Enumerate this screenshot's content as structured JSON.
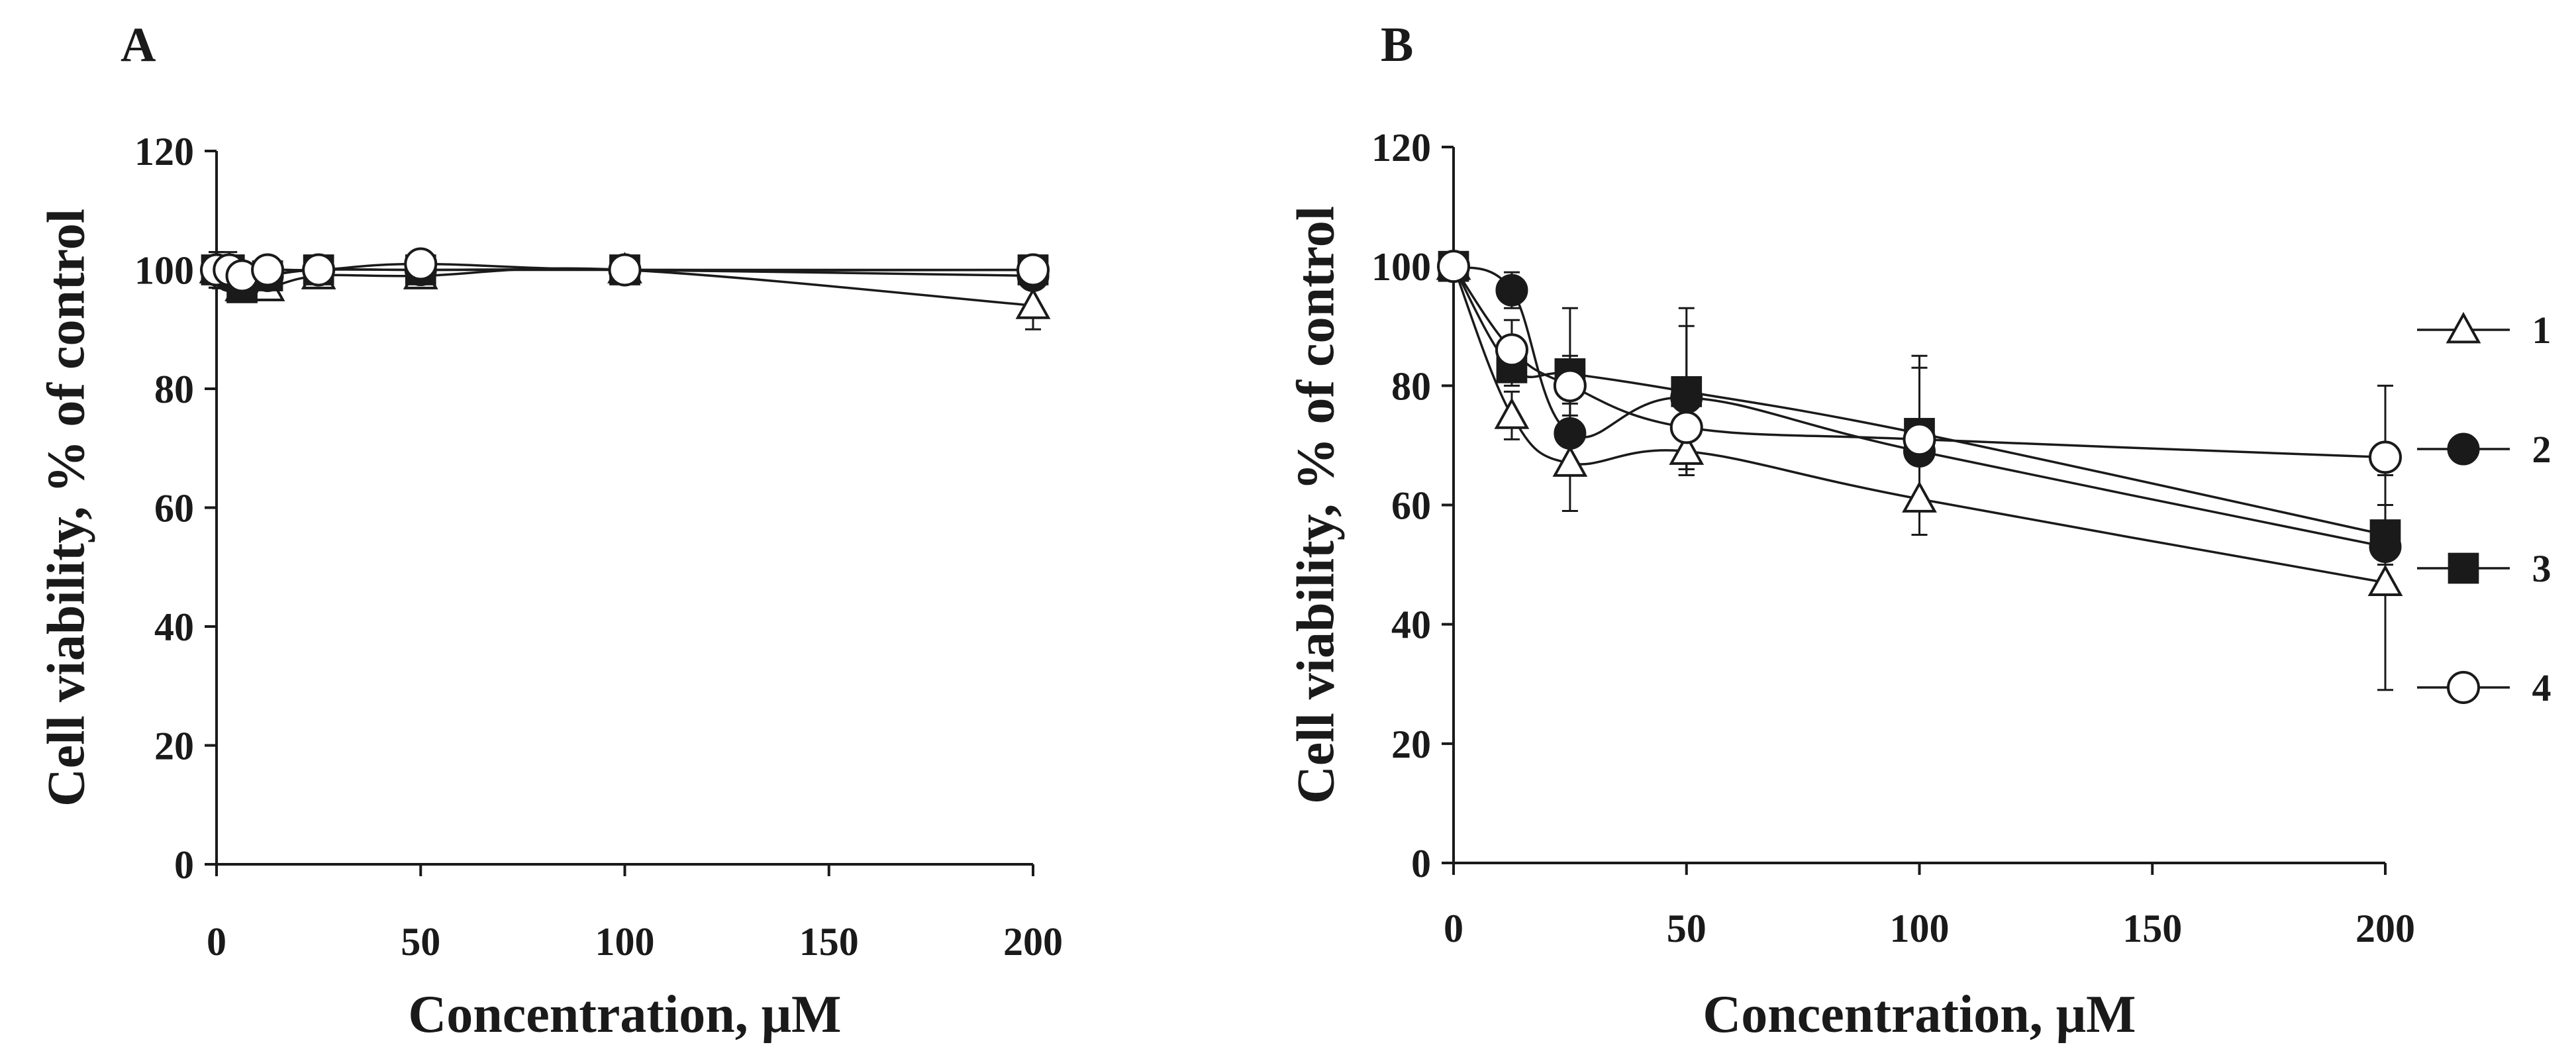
{
  "chart_data": [
    {
      "panel": "A",
      "type": "line",
      "xlabel": "Concentration, μM",
      "ylabel": "Cell viability, % of control",
      "xlim": [
        0,
        200
      ],
      "ylim": [
        0,
        120
      ],
      "xticks": [
        "0",
        "50",
        "100",
        "150",
        "200"
      ],
      "yticks": [
        "0",
        "20",
        "40",
        "60",
        "80",
        "100",
        "120"
      ],
      "x": [
        0,
        3.125,
        6.25,
        12.5,
        25,
        50,
        100,
        200
      ],
      "series": [
        {
          "name": "1",
          "marker": "triangle-open",
          "values": [
            100,
            99,
            97,
            97,
            99,
            99,
            100,
            94
          ],
          "err": [
            3,
            2,
            2,
            2,
            2,
            2,
            2,
            4
          ]
        },
        {
          "name": "2",
          "marker": "circle-filled",
          "values": [
            100,
            99,
            98,
            99,
            100,
            100,
            100,
            99
          ],
          "err": [
            3,
            2,
            2,
            2,
            2,
            2,
            2,
            2
          ]
        },
        {
          "name": "3",
          "marker": "square-filled",
          "values": [
            100,
            100,
            97,
            99,
            100,
            100,
            100,
            100
          ],
          "err": [
            3,
            3,
            2,
            2,
            2,
            2,
            2,
            2
          ]
        },
        {
          "name": "4",
          "marker": "circle-open",
          "values": [
            100,
            100,
            99,
            100,
            100,
            101,
            100,
            100
          ],
          "err": [
            2,
            2,
            2,
            2,
            2,
            2,
            2,
            2
          ]
        }
      ]
    },
    {
      "panel": "B",
      "type": "line",
      "xlabel": "Concentration, μM",
      "ylabel": "Cell viability, % of control",
      "xlim": [
        0,
        200
      ],
      "ylim": [
        0,
        120
      ],
      "xticks": [
        "0",
        "50",
        "100",
        "150",
        "200"
      ],
      "yticks": [
        "0",
        "20",
        "40",
        "60",
        "80",
        "100",
        "120"
      ],
      "x": [
        0,
        12.5,
        25,
        50,
        100,
        200
      ],
      "series": [
        {
          "name": "1",
          "marker": "triangle-open",
          "values": [
            100,
            75,
            67,
            69,
            61,
            47
          ],
          "err": [
            2,
            4,
            8,
            4,
            6,
            18
          ]
        },
        {
          "name": "2",
          "marker": "circle-filled",
          "values": [
            100,
            96,
            72,
            78,
            69,
            53
          ],
          "err": [
            2,
            3,
            5,
            12,
            14,
            7
          ]
        },
        {
          "name": "3",
          "marker": "square-filled",
          "values": [
            100,
            83,
            82,
            79,
            72,
            55
          ],
          "err": [
            2,
            3,
            3,
            14,
            13,
            5
          ]
        },
        {
          "name": "4",
          "marker": "circle-open",
          "values": [
            100,
            86,
            80,
            73,
            71,
            68
          ],
          "err": [
            2,
            5,
            13,
            7,
            3,
            12
          ]
        }
      ],
      "legend": [
        "1",
        "2",
        "3",
        "4"
      ],
      "legend_position": "right"
    }
  ]
}
